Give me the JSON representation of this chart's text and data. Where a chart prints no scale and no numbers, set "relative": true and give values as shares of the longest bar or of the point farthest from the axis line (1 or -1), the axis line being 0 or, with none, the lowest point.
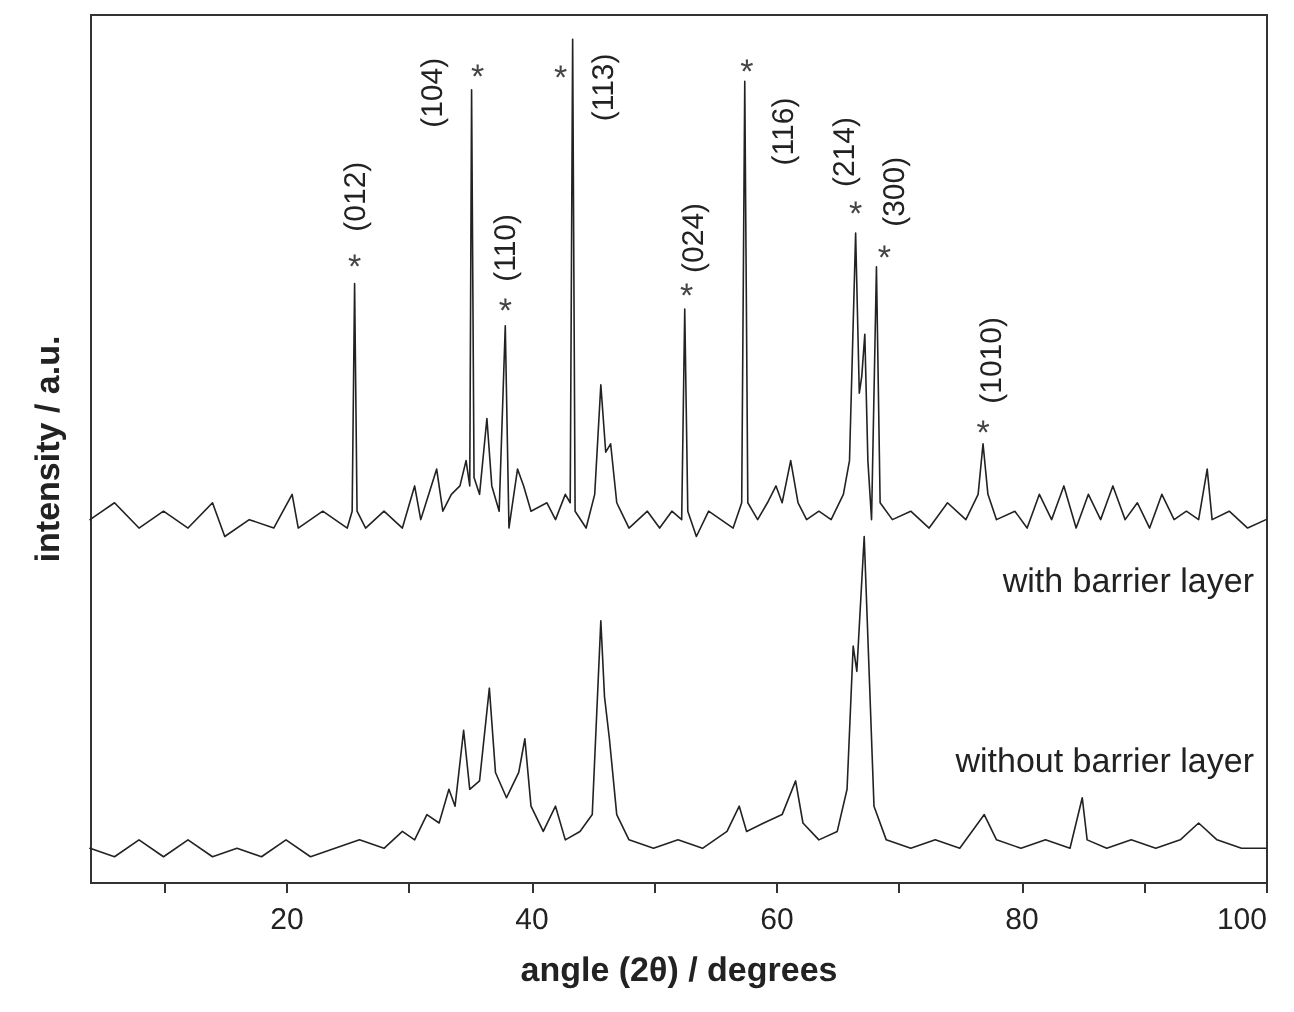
{
  "chart_data": {
    "type": "line",
    "xlabel": "angle (2θ) / degrees",
    "ylabel": "intensity / a.u.",
    "relative": true,
    "xlim": [
      4,
      100
    ],
    "xticks": [
      {
        "value": 10,
        "label": null
      },
      20,
      {
        "value": 30,
        "label": null
      },
      40,
      {
        "value": 50,
        "label": null
      },
      60,
      {
        "value": 70,
        "label": null
      },
      80,
      {
        "value": 90,
        "label": null
      },
      100
    ],
    "grid": false,
    "marker": "none",
    "line_style": "solid",
    "series": [
      {
        "name": "with barrier layer",
        "color": "#222222",
        "x": [
          4,
          6,
          8,
          10,
          12,
          14,
          15,
          17,
          19,
          20.5,
          21,
          23,
          25,
          25.4,
          25.6,
          25.8,
          26.5,
          28,
          29.5,
          30.5,
          31,
          32.3,
          32.8,
          33.5,
          34.2,
          34.7,
          35.0,
          35.15,
          35.35,
          35.8,
          36.4,
          36.8,
          37.4,
          37.9,
          38.2,
          38.9,
          39.4,
          40,
          41.3,
          42,
          42.8,
          43.2,
          43.4,
          43.6,
          44.5,
          45.2,
          45.7,
          46.1,
          46.5,
          47,
          48,
          49.5,
          50.5,
          51.5,
          52.3,
          52.55,
          52.8,
          53.5,
          54.5,
          55.5,
          56.5,
          57.2,
          57.45,
          57.7,
          58.5,
          59.3,
          60,
          60.5,
          61.2,
          61.8,
          62.5,
          63.5,
          64.5,
          65.5,
          66.0,
          66.5,
          66.8,
          67.0,
          67.25,
          67.5,
          67.8,
          68.2,
          68.5,
          69.5,
          71,
          72.5,
          74,
          75.5,
          76.5,
          76.9,
          77.3,
          78,
          79.5,
          80.5,
          81.5,
          82.5,
          83.5,
          84.5,
          85.5,
          86.5,
          87.5,
          88.5,
          89.5,
          90.5,
          91.5,
          92.5,
          93.5,
          94.5,
          95.2,
          95.6,
          97,
          98.5,
          100
        ],
        "values": [
          0.43,
          0.45,
          0.42,
          0.44,
          0.42,
          0.45,
          0.41,
          0.43,
          0.42,
          0.46,
          0.42,
          0.44,
          0.42,
          0.44,
          0.71,
          0.44,
          0.42,
          0.44,
          0.42,
          0.47,
          0.43,
          0.49,
          0.44,
          0.46,
          0.47,
          0.5,
          0.47,
          0.94,
          0.48,
          0.46,
          0.55,
          0.47,
          0.44,
          0.66,
          0.42,
          0.49,
          0.47,
          0.44,
          0.45,
          0.43,
          0.46,
          0.45,
          1.0,
          0.44,
          0.42,
          0.46,
          0.59,
          0.51,
          0.52,
          0.45,
          0.42,
          0.44,
          0.42,
          0.44,
          0.43,
          0.68,
          0.44,
          0.41,
          0.44,
          0.43,
          0.42,
          0.45,
          0.95,
          0.45,
          0.43,
          0.45,
          0.47,
          0.45,
          0.5,
          0.45,
          0.43,
          0.44,
          0.43,
          0.46,
          0.5,
          0.77,
          0.58,
          0.6,
          0.65,
          0.5,
          0.43,
          0.73,
          0.45,
          0.43,
          0.44,
          0.42,
          0.45,
          0.43,
          0.46,
          0.52,
          0.46,
          0.43,
          0.44,
          0.42,
          0.46,
          0.43,
          0.47,
          0.42,
          0.46,
          0.43,
          0.47,
          0.43,
          0.45,
          0.42,
          0.46,
          0.43,
          0.44,
          0.43,
          0.49,
          0.43,
          0.44,
          0.42,
          0.43
        ]
      },
      {
        "name": "without barrier layer",
        "color": "#222222",
        "x": [
          4,
          6,
          8,
          10,
          12,
          14,
          16,
          18,
          20,
          22,
          24,
          26,
          28,
          29.5,
          30.5,
          31.5,
          32.5,
          33.3,
          33.8,
          34.5,
          35,
          35.8,
          36.6,
          37.1,
          38,
          39,
          39.5,
          40,
          41,
          42,
          42.8,
          44,
          45,
          45.7,
          46.0,
          46.4,
          47,
          48,
          50,
          52,
          54,
          56,
          57,
          57.6,
          59,
          60.5,
          61.6,
          62.2,
          63.5,
          65,
          65.8,
          66.3,
          66.6,
          67.2,
          67.6,
          68,
          69,
          71,
          73,
          75,
          76.5,
          77,
          78,
          80,
          82,
          84,
          85.0,
          85.4,
          87,
          89,
          91,
          93,
          94.5,
          96,
          98,
          100
        ],
        "values": [
          0.04,
          0.03,
          0.05,
          0.03,
          0.05,
          0.03,
          0.04,
          0.03,
          0.05,
          0.03,
          0.04,
          0.05,
          0.04,
          0.06,
          0.05,
          0.08,
          0.07,
          0.11,
          0.09,
          0.18,
          0.11,
          0.12,
          0.23,
          0.13,
          0.1,
          0.13,
          0.17,
          0.09,
          0.06,
          0.09,
          0.05,
          0.06,
          0.08,
          0.31,
          0.22,
          0.17,
          0.08,
          0.05,
          0.04,
          0.05,
          0.04,
          0.06,
          0.09,
          0.06,
          0.07,
          0.08,
          0.12,
          0.07,
          0.05,
          0.06,
          0.11,
          0.28,
          0.25,
          0.41,
          0.25,
          0.09,
          0.05,
          0.04,
          0.05,
          0.04,
          0.07,
          0.08,
          0.05,
          0.04,
          0.05,
          0.04,
          0.1,
          0.05,
          0.04,
          0.05,
          0.04,
          0.05,
          0.07,
          0.05,
          0.04,
          0.04
        ]
      }
    ],
    "annotations": [
      {
        "text": "*",
        "x": 25.6,
        "y": 0.71
      },
      {
        "text": "(012)",
        "x": 25.6,
        "y": 0.71
      },
      {
        "text": "*",
        "x": 35.15,
        "y": 0.94
      },
      {
        "text": "(104)",
        "x": 35.15,
        "y": 0.94
      },
      {
        "text": "*",
        "x": 37.9,
        "y": 0.66
      },
      {
        "text": "(110)",
        "x": 37.9,
        "y": 0.66
      },
      {
        "text": "*",
        "x": 43.4,
        "y": 1.0
      },
      {
        "text": "(113)",
        "x": 43.4,
        "y": 1.0
      },
      {
        "text": "*",
        "x": 52.55,
        "y": 0.68
      },
      {
        "text": "(024)",
        "x": 52.55,
        "y": 0.68
      },
      {
        "text": "*",
        "x": 57.45,
        "y": 0.95
      },
      {
        "text": "(116)",
        "x": 57.45,
        "y": 0.95
      },
      {
        "text": "*",
        "x": 66.5,
        "y": 0.77
      },
      {
        "text": "(214)",
        "x": 66.5,
        "y": 0.77
      },
      {
        "text": "*",
        "x": 68.2,
        "y": 0.73
      },
      {
        "text": "(300)",
        "x": 68.2,
        "y": 0.73
      },
      {
        "text": "*",
        "x": 76.9,
        "y": 0.52
      },
      {
        "text": "(1010)",
        "x": 76.9,
        "y": 0.52
      }
    ]
  }
}
